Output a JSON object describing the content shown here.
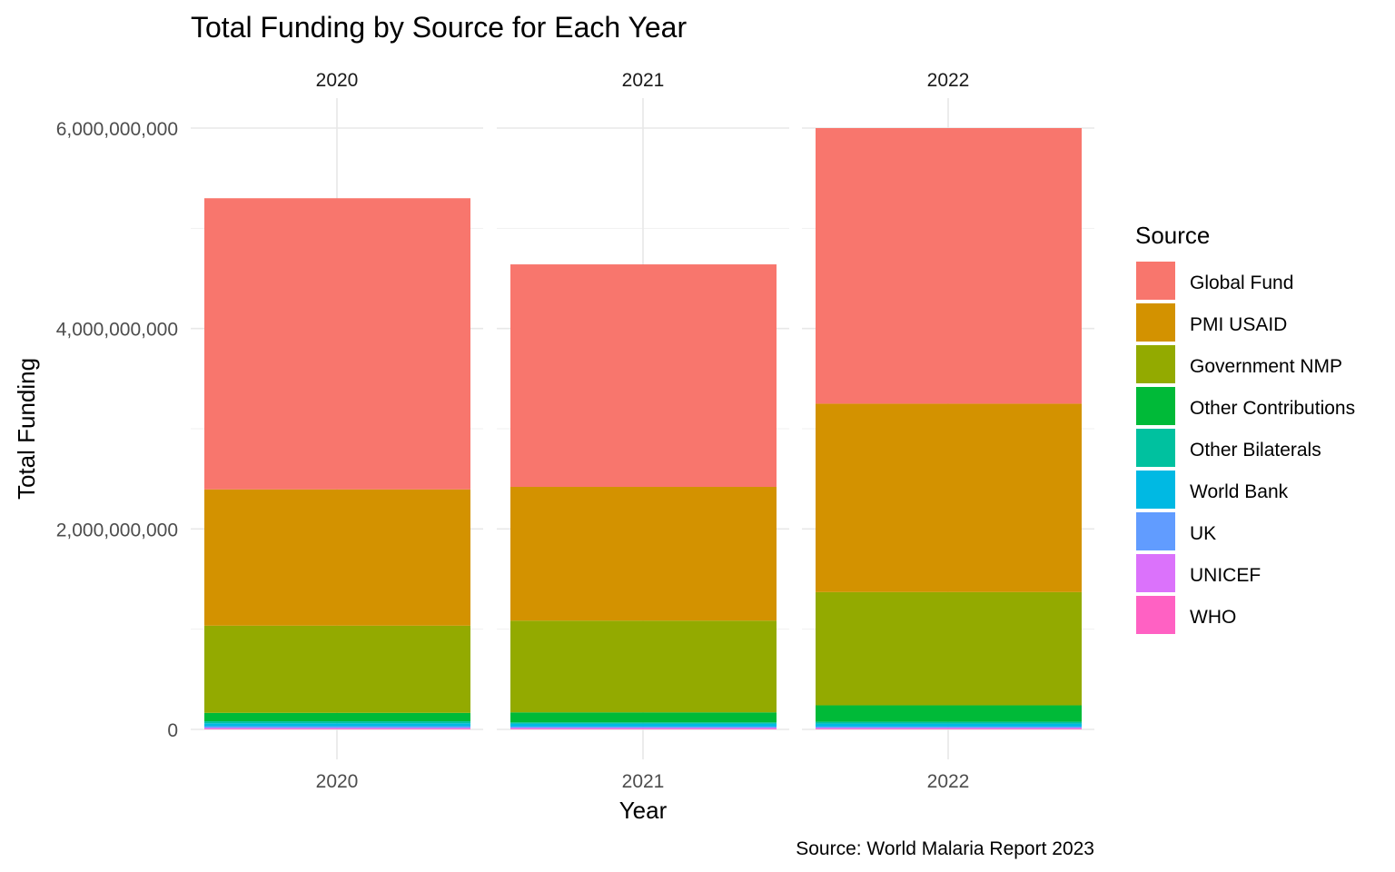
{
  "chart_data": {
    "type": "bar",
    "stacked": true,
    "faceted_by": "year",
    "title": "Total Funding by Source for Each Year",
    "xlabel": "Year",
    "ylabel": "Total Funding",
    "caption": "Source: World Malaria Report 2023",
    "legend_title": "Source",
    "legend_position": "right",
    "grid": true,
    "ylim": [
      0,
      6000000000
    ],
    "y_ticks": [
      "0",
      "2,000,000,000",
      "4,000,000,000",
      "6,000,000,000"
    ],
    "categories": [
      "2020",
      "2021",
      "2022"
    ],
    "series": [
      {
        "name": "WHO",
        "color": "#FF61C3",
        "values": [
          8000000,
          8000000,
          8000000
        ]
      },
      {
        "name": "UNICEF",
        "color": "#DB72FB",
        "values": [
          8000000,
          8000000,
          8000000
        ]
      },
      {
        "name": "UK",
        "color": "#619CFF",
        "values": [
          15000000,
          12000000,
          12000000
        ]
      },
      {
        "name": "World Bank",
        "color": "#00B9E3",
        "values": [
          30000000,
          30000000,
          30000000
        ]
      },
      {
        "name": "Other Bilaterals",
        "color": "#00C19F",
        "values": [
          20000000,
          12000000,
          18000000
        ]
      },
      {
        "name": "Other Contributions",
        "color": "#00BA38",
        "values": [
          84000000,
          100000000,
          164000000
        ]
      },
      {
        "name": "Government NMP",
        "color": "#93AA00",
        "values": [
          870000000,
          915000000,
          1130000000
        ]
      },
      {
        "name": "PMI USAID",
        "color": "#D39200",
        "values": [
          1360000000,
          1335000000,
          1880000000
        ]
      },
      {
        "name": "Global Fund",
        "color": "#F8766D",
        "values": [
          2905000000,
          2220000000,
          2750000000
        ]
      }
    ],
    "legend_order": [
      "Global Fund",
      "PMI USAID",
      "Government NMP",
      "Other Contributions",
      "Other Bilaterals",
      "World Bank",
      "UK",
      "UNICEF",
      "WHO"
    ]
  }
}
